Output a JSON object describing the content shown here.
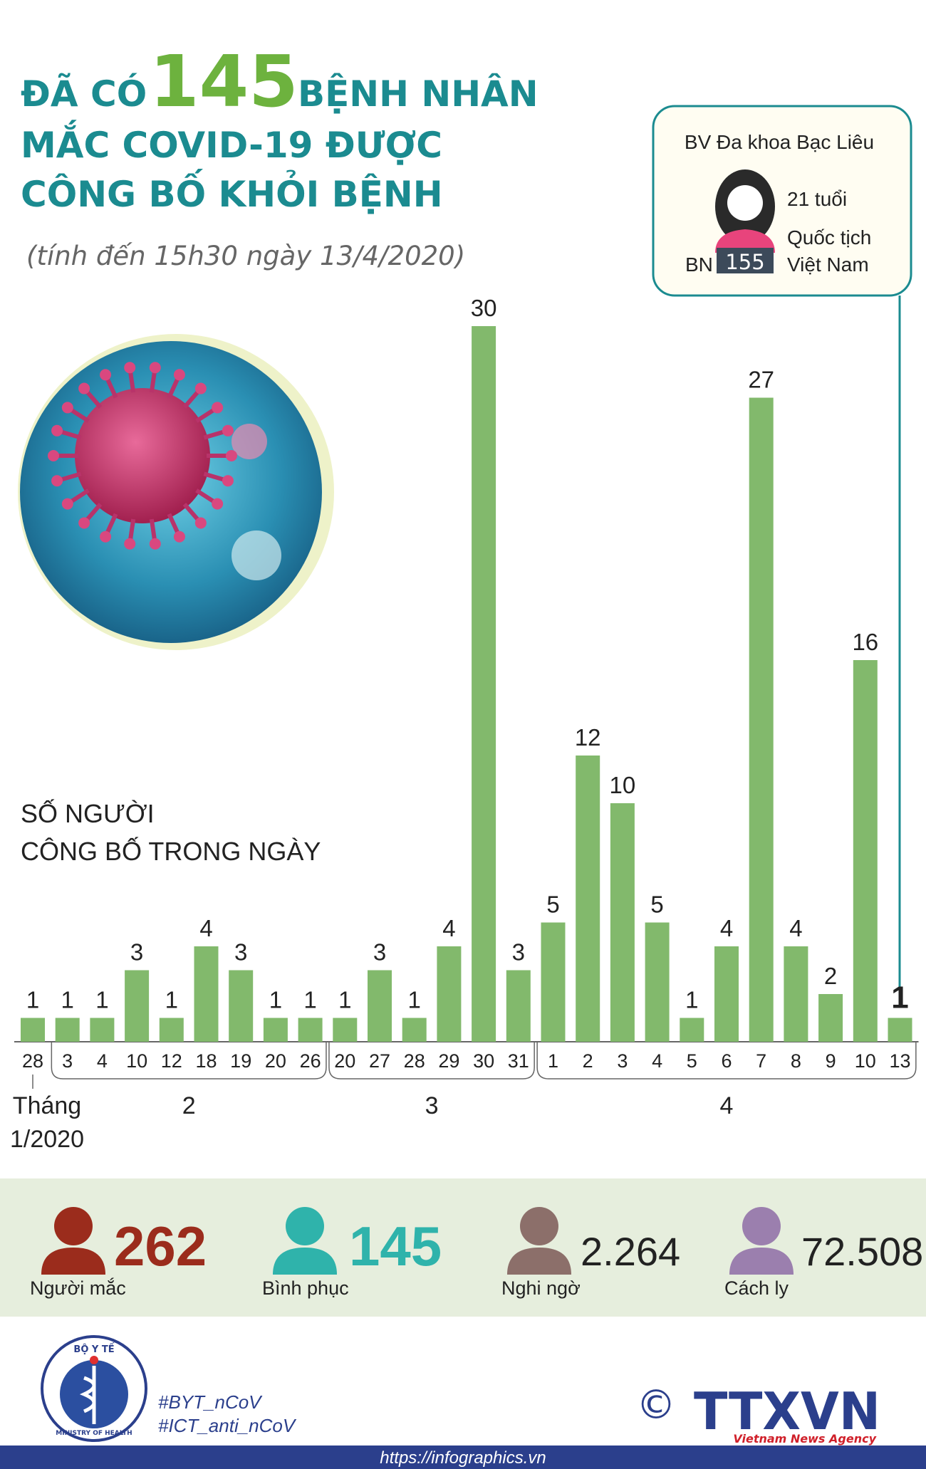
{
  "header": {
    "title_parts": [
      "ĐÃ CÓ",
      "145",
      "BỆNH NHÂN"
    ],
    "title_lines": [
      "MẮC COVID-19 ĐƯỢC",
      "CÔNG BỐ KHỎI BỆNH"
    ],
    "subtitle": "(tính đến 15h30 ngày 13/4/2020)"
  },
  "patient_card": {
    "hospital": "BV Đa khoa Bạc Liêu",
    "age": "21 tuổi",
    "nationality": [
      "Quốc tịch",
      "Việt Nam"
    ],
    "prefix": "BN",
    "id": "155"
  },
  "chart_data": {
    "type": "bar",
    "ylabel": [
      "SỐ NGƯỜI",
      "CÔNG BỐ TRONG NGÀY"
    ],
    "categories": [
      "28",
      "3",
      "4",
      "10",
      "12",
      "18",
      "19",
      "20",
      "26",
      "20",
      "27",
      "28",
      "29",
      "30",
      "31",
      "1",
      "2",
      "3",
      "4",
      "5",
      "6",
      "7",
      "8",
      "9",
      "10",
      "13"
    ],
    "values": [
      1,
      1,
      1,
      3,
      1,
      4,
      3,
      1,
      1,
      1,
      3,
      1,
      4,
      30,
      3,
      5,
      12,
      10,
      5,
      1,
      4,
      27,
      4,
      2,
      16,
      1
    ],
    "month_labels": [
      [
        "Tháng",
        "1/2020"
      ],
      [
        "2"
      ],
      [
        "3"
      ],
      [
        "4"
      ]
    ],
    "color": "#82b96c",
    "ylim": [
      0,
      30
    ]
  },
  "stats": [
    {
      "value": "262",
      "label": "Người mắc",
      "color": "#9b2c1c"
    },
    {
      "value": "145",
      "label": "Bình phục",
      "color": "#2fb3ab"
    },
    {
      "value": "2.264",
      "label": "Nghi ngờ",
      "color": "#8c6f6a"
    },
    {
      "value": "72.508",
      "label": "Cách ly",
      "color": "#9b7fae"
    }
  ],
  "footer": {
    "logo_top": "BỘ Y TẾ",
    "logo_bottom": "MINISTRY OF HEALTH",
    "hashtags": [
      "#BYT_nCoV",
      "#ICT_anti_nCoV"
    ],
    "copyright": "©",
    "agency": "TTXVN",
    "agency_sub": "Vietnam News Agency",
    "url": "https://infographics.vn"
  }
}
